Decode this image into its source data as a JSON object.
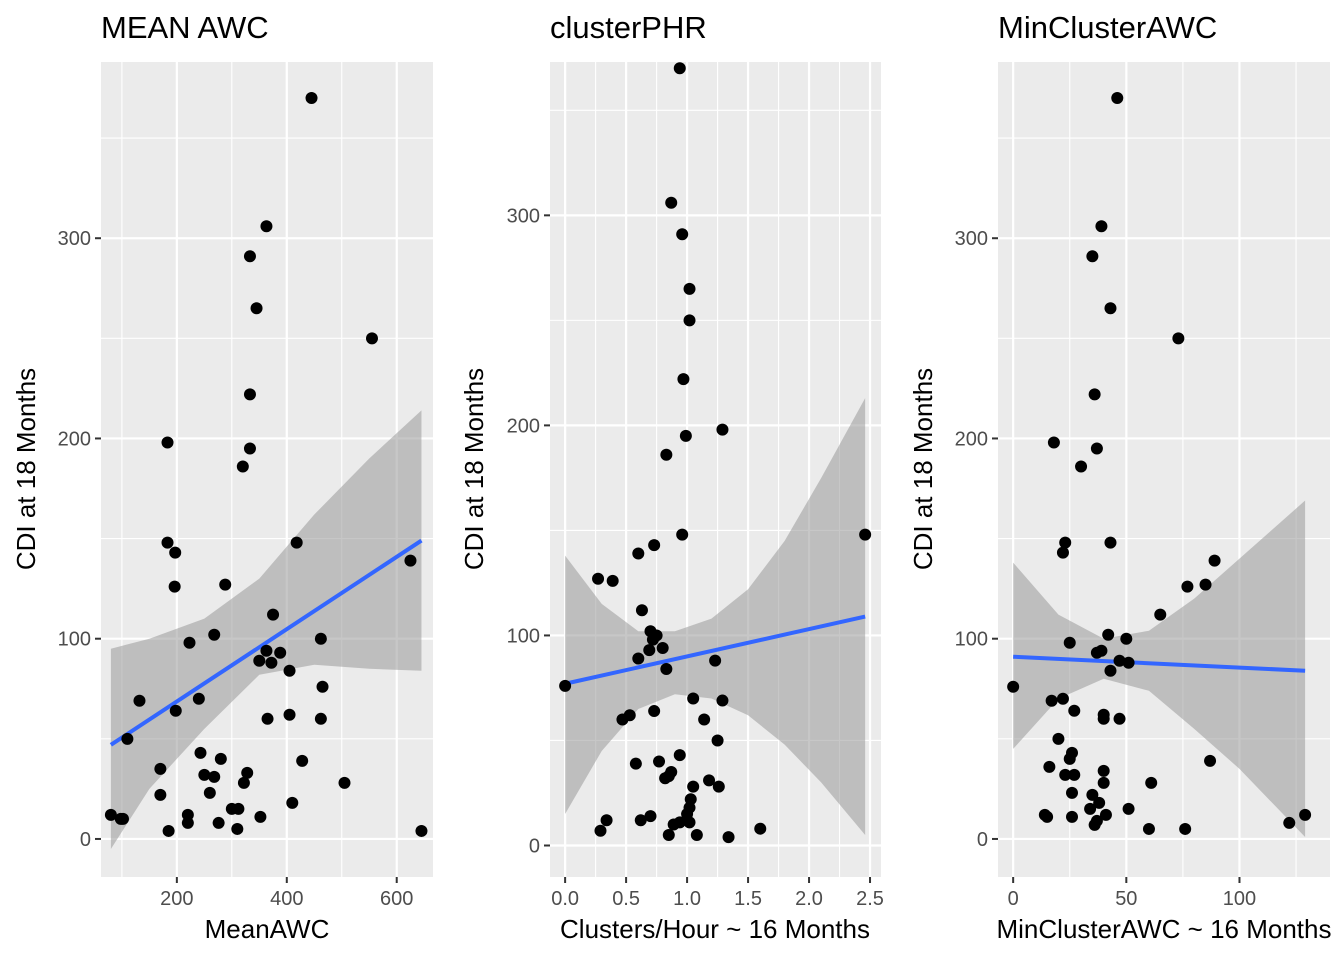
{
  "chart_data": [
    {
      "type": "scatter",
      "title": "MEAN AWC",
      "xlabel": "MeanAWC",
      "ylabel": "CDI at 18 Months",
      "xlim": [
        62,
        666
      ],
      "ylim": [
        -19,
        388
      ],
      "xticks": [
        200,
        400,
        600
      ],
      "yticks": [
        0,
        100,
        200,
        300
      ],
      "xtick_labels": [
        "200",
        "400",
        "600"
      ],
      "ytick_labels": [
        "0",
        "100",
        "200",
        "300"
      ],
      "grid": true,
      "colors": {
        "panel": "#ebebeb",
        "points": "#000000",
        "fit_line": "#3366ff",
        "ribbon": "#999999"
      },
      "points": [
        [
          445,
          370
        ],
        [
          363,
          306
        ],
        [
          333,
          291
        ],
        [
          345,
          265
        ],
        [
          555,
          250
        ],
        [
          333,
          222
        ],
        [
          183,
          198
        ],
        [
          333,
          195
        ],
        [
          320,
          186
        ],
        [
          418,
          148
        ],
        [
          183,
          148
        ],
        [
          197,
          143
        ],
        [
          625,
          139
        ],
        [
          196,
          126
        ],
        [
          288,
          127
        ],
        [
          375,
          112
        ],
        [
          462,
          100
        ],
        [
          223,
          98
        ],
        [
          268,
          102
        ],
        [
          363,
          94
        ],
        [
          372,
          88
        ],
        [
          388,
          93
        ],
        [
          350,
          89
        ],
        [
          405,
          84
        ],
        [
          132,
          69
        ],
        [
          240,
          70
        ],
        [
          198,
          64
        ],
        [
          465,
          76
        ],
        [
          110,
          50
        ],
        [
          365,
          60
        ],
        [
          405,
          62
        ],
        [
          462,
          60
        ],
        [
          243,
          43
        ],
        [
          428,
          39
        ],
        [
          280,
          40
        ],
        [
          170,
          35
        ],
        [
          250,
          32
        ],
        [
          268,
          31
        ],
        [
          328,
          33
        ],
        [
          322,
          28
        ],
        [
          505,
          28
        ],
        [
          260,
          23
        ],
        [
          170,
          22
        ],
        [
          410,
          18
        ],
        [
          300,
          15
        ],
        [
          312,
          15
        ],
        [
          220,
          12
        ],
        [
          352,
          11
        ],
        [
          80,
          12
        ],
        [
          98,
          10
        ],
        [
          102,
          10
        ],
        [
          220,
          8
        ],
        [
          276,
          8
        ],
        [
          185,
          4
        ],
        [
          310,
          5
        ],
        [
          645,
          4
        ]
      ],
      "fit": {
        "x": [
          80,
          645
        ],
        "y": [
          47,
          149
        ]
      },
      "ribbon": {
        "x": [
          80,
          150,
          250,
          350,
          450,
          550,
          645
        ],
        "lower": [
          -5,
          25,
          55,
          82,
          87,
          85,
          84
        ],
        "upper": [
          95,
          100,
          110,
          130,
          162,
          190,
          214
        ]
      }
    },
    {
      "type": "scatter",
      "title": "clusterPHR",
      "xlabel": "Clusters/Hour ~ 16 Months",
      "ylabel": "CDI at 18 Months",
      "xlim": [
        -0.124,
        2.59
      ],
      "ylim": [
        -15,
        373
      ],
      "xticks": [
        0,
        0.5,
        1,
        1.5,
        2,
        2.5
      ],
      "yticks": [
        0,
        100,
        200,
        300
      ],
      "xtick_labels": [
        "0.0",
        "0.5",
        "1.0",
        "1.5",
        "2.0",
        "2.5"
      ],
      "ytick_labels": [
        "0",
        "100",
        "200",
        "300"
      ],
      "grid": true,
      "colors": {
        "panel": "#ebebeb",
        "points": "#000000",
        "fit_line": "#3366ff",
        "ribbon": "#999999"
      },
      "points": [
        [
          0.94,
          370
        ],
        [
          0.87,
          306
        ],
        [
          0.96,
          291
        ],
        [
          1.02,
          265
        ],
        [
          1.02,
          250
        ],
        [
          0.97,
          222
        ],
        [
          1.29,
          198
        ],
        [
          0.99,
          195
        ],
        [
          0.83,
          186
        ],
        [
          0.96,
          148
        ],
        [
          2.46,
          148
        ],
        [
          0.73,
          143
        ],
        [
          0.6,
          139
        ],
        [
          0.27,
          127
        ],
        [
          0.39,
          126
        ],
        [
          0.63,
          112
        ],
        [
          0.7,
          102
        ],
        [
          0.75,
          100
        ],
        [
          0.72,
          98
        ],
        [
          0.8,
          94
        ],
        [
          0.69,
          93
        ],
        [
          0.6,
          89
        ],
        [
          1.23,
          88
        ],
        [
          0.83,
          84
        ],
        [
          0.0,
          76
        ],
        [
          1.05,
          70
        ],
        [
          1.29,
          69
        ],
        [
          0.73,
          64
        ],
        [
          0.53,
          62
        ],
        [
          0.47,
          60
        ],
        [
          1.14,
          60
        ],
        [
          1.25,
          50
        ],
        [
          0.94,
          43
        ],
        [
          0.77,
          40
        ],
        [
          0.58,
          39
        ],
        [
          0.87,
          35
        ],
        [
          0.85,
          33
        ],
        [
          0.82,
          32
        ],
        [
          1.18,
          31
        ],
        [
          1.05,
          28
        ],
        [
          1.26,
          28
        ],
        [
          1.03,
          22
        ],
        [
          1.02,
          18
        ],
        [
          1.0,
          15
        ],
        [
          0.34,
          12
        ],
        [
          0.62,
          12
        ],
        [
          0.7,
          14
        ],
        [
          0.94,
          11
        ],
        [
          0.89,
          10
        ],
        [
          1.02,
          11
        ],
        [
          0.29,
          7
        ],
        [
          1.6,
          8
        ],
        [
          0.85,
          5
        ],
        [
          1.08,
          5
        ],
        [
          1.34,
          4
        ]
      ],
      "fit": {
        "x": [
          0,
          2.46
        ],
        "y": [
          77,
          109
        ]
      },
      "ribbon": {
        "x": [
          0,
          0.3,
          0.6,
          0.9,
          1.2,
          1.5,
          1.8,
          2.1,
          2.46
        ],
        "lower": [
          15,
          45,
          65,
          72,
          70,
          62,
          48,
          30,
          5
        ],
        "upper": [
          138,
          115,
          102,
          102,
          108,
          122,
          145,
          175,
          213
        ]
      }
    },
    {
      "type": "scatter",
      "title": "MinClusterAWC",
      "xlabel": "MinClusterAWC ~ 16 Months",
      "ylabel": "CDI at 18 Months",
      "xlim": [
        -6.7,
        140
      ],
      "ylim": [
        -19,
        388
      ],
      "xticks": [
        0,
        50,
        100
      ],
      "yticks": [
        0,
        100,
        200,
        300
      ],
      "xtick_labels": [
        "0",
        "50",
        "100"
      ],
      "ytick_labels": [
        "0",
        "100",
        "200",
        "300"
      ],
      "grid": true,
      "colors": {
        "panel": "#ebebeb",
        "points": "#000000",
        "fit_line": "#3366ff",
        "ribbon": "#999999"
      },
      "points": [
        [
          46,
          370
        ],
        [
          39,
          306
        ],
        [
          35,
          291
        ],
        [
          43,
          265
        ],
        [
          73,
          250
        ],
        [
          36,
          222
        ],
        [
          18,
          198
        ],
        [
          37,
          195
        ],
        [
          30,
          186
        ],
        [
          43,
          148
        ],
        [
          23,
          148
        ],
        [
          22,
          143
        ],
        [
          89,
          139
        ],
        [
          77,
          126
        ],
        [
          85,
          127
        ],
        [
          65,
          112
        ],
        [
          42,
          102
        ],
        [
          50,
          100
        ],
        [
          25,
          98
        ],
        [
          37,
          93
        ],
        [
          39,
          94
        ],
        [
          47,
          89
        ],
        [
          51,
          88
        ],
        [
          43,
          84
        ],
        [
          0,
          76
        ],
        [
          17,
          69
        ],
        [
          22,
          70
        ],
        [
          27,
          64
        ],
        [
          40,
          62
        ],
        [
          40,
          60
        ],
        [
          47,
          60
        ],
        [
          20,
          50
        ],
        [
          26,
          43
        ],
        [
          87,
          39
        ],
        [
          25,
          40
        ],
        [
          16,
          36
        ],
        [
          40,
          34
        ],
        [
          23,
          32
        ],
        [
          27,
          32
        ],
        [
          40,
          28
        ],
        [
          61,
          28
        ],
        [
          35,
          22
        ],
        [
          26,
          23
        ],
        [
          38,
          18
        ],
        [
          34,
          15
        ],
        [
          51,
          15
        ],
        [
          14,
          12
        ],
        [
          15,
          11
        ],
        [
          26,
          11
        ],
        [
          41,
          12
        ],
        [
          36,
          7
        ],
        [
          37,
          9
        ],
        [
          60,
          5
        ],
        [
          76,
          5
        ],
        [
          122,
          8
        ],
        [
          129,
          12
        ]
      ],
      "fit": {
        "x": [
          0,
          129
        ],
        "y": [
          91,
          84
        ]
      },
      "ribbon": {
        "x": [
          0,
          20,
          40,
          60,
          80,
          100,
          129
        ],
        "lower": [
          45,
          70,
          80,
          74,
          55,
          35,
          1
        ],
        "upper": [
          138,
          112,
          100,
          104,
          120,
          140,
          169
        ]
      }
    }
  ]
}
